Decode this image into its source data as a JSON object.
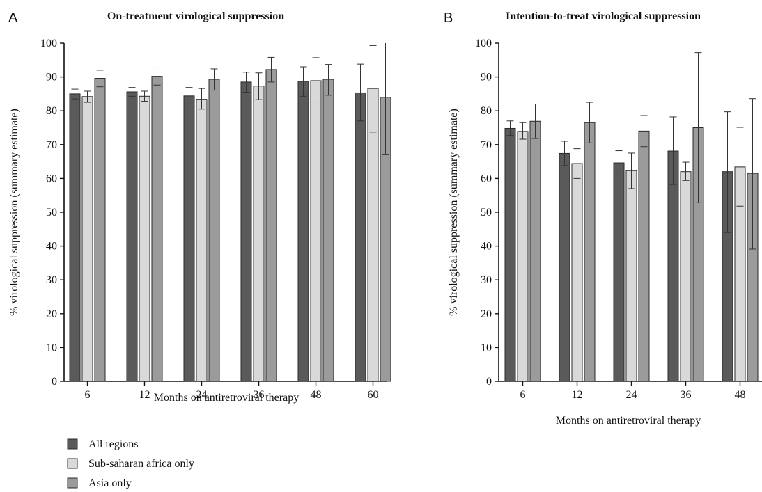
{
  "colors": {
    "all_regions": "#5a5a5a",
    "sub_saharan": "#d9d9d9",
    "asia": "#9b9b9b"
  },
  "legend": [
    {
      "label": "All regions",
      "color_key": "all_regions"
    },
    {
      "label": "Sub-saharan africa only",
      "color_key": "sub_saharan"
    },
    {
      "label": "Asia only",
      "color_key": "asia"
    }
  ],
  "chart_data": [
    {
      "type": "bar",
      "panel_letter": "A",
      "title": "On-treatment virological suppression",
      "xlabel": "Months on antiretroviral therapy",
      "ylabel": "% virological suppression (summary estimate)",
      "ylim": [
        0,
        100
      ],
      "yticks": [
        0,
        10,
        20,
        30,
        40,
        50,
        60,
        70,
        80,
        90,
        100
      ],
      "categories": [
        "6",
        "12",
        "24",
        "36",
        "48",
        "60"
      ],
      "series": [
        {
          "name": "All regions",
          "color_key": "all_regions",
          "values": [
            85.0,
            85.6,
            84.4,
            88.5,
            88.7,
            85.3
          ],
          "ci_low": [
            83.5,
            84.3,
            82.0,
            85.5,
            84.3,
            77.0
          ],
          "ci_high": [
            86.4,
            86.9,
            86.9,
            91.4,
            93.0,
            93.8
          ]
        },
        {
          "name": "Sub-saharan africa only",
          "color_key": "sub_saharan",
          "values": [
            84.2,
            84.3,
            83.4,
            87.3,
            88.9,
            86.6
          ],
          "ci_low": [
            82.5,
            82.8,
            80.5,
            83.3,
            82.0,
            73.7
          ],
          "ci_high": [
            85.8,
            85.8,
            86.6,
            91.2,
            95.7,
            99.3
          ]
        },
        {
          "name": "Asia only",
          "color_key": "asia",
          "values": [
            89.6,
            90.2,
            89.3,
            92.2,
            89.3,
            84.0
          ],
          "ci_low": [
            87.1,
            87.6,
            86.1,
            88.5,
            84.6,
            67.0
          ],
          "ci_high": [
            92.0,
            92.7,
            92.4,
            95.8,
            93.7,
            100.0
          ]
        }
      ]
    },
    {
      "type": "bar",
      "panel_letter": "B",
      "title": "Intention-to-treat  virological suppression",
      "xlabel": "Months on antiretroviral therapy",
      "ylabel": "% virological suppression (summary estimate)",
      "ylim": [
        0,
        100
      ],
      "yticks": [
        0,
        10,
        20,
        30,
        40,
        50,
        60,
        70,
        80,
        90,
        100
      ],
      "categories": [
        "6",
        "12",
        "24",
        "36",
        "48"
      ],
      "series": [
        {
          "name": "All regions",
          "color_key": "all_regions",
          "values": [
            74.8,
            67.4,
            64.6,
            68.1,
            62.0
          ],
          "ci_low": [
            72.7,
            63.8,
            61.0,
            58.2,
            44.0
          ],
          "ci_high": [
            77.0,
            71.0,
            68.2,
            78.2,
            79.7
          ]
        },
        {
          "name": "Sub-saharan africa only",
          "color_key": "sub_saharan",
          "values": [
            73.9,
            64.4,
            62.3,
            62.0,
            63.4
          ],
          "ci_low": [
            71.6,
            60.0,
            57.0,
            59.4,
            51.8
          ],
          "ci_high": [
            76.5,
            68.8,
            67.5,
            64.8,
            75.1
          ]
        },
        {
          "name": "Asia only",
          "color_key": "asia",
          "values": [
            76.9,
            76.5,
            74.0,
            75.0,
            61.5
          ],
          "ci_low": [
            71.8,
            70.5,
            69.4,
            52.8,
            39.1
          ],
          "ci_high": [
            82.0,
            82.5,
            78.6,
            97.2,
            83.6
          ]
        }
      ]
    }
  ]
}
